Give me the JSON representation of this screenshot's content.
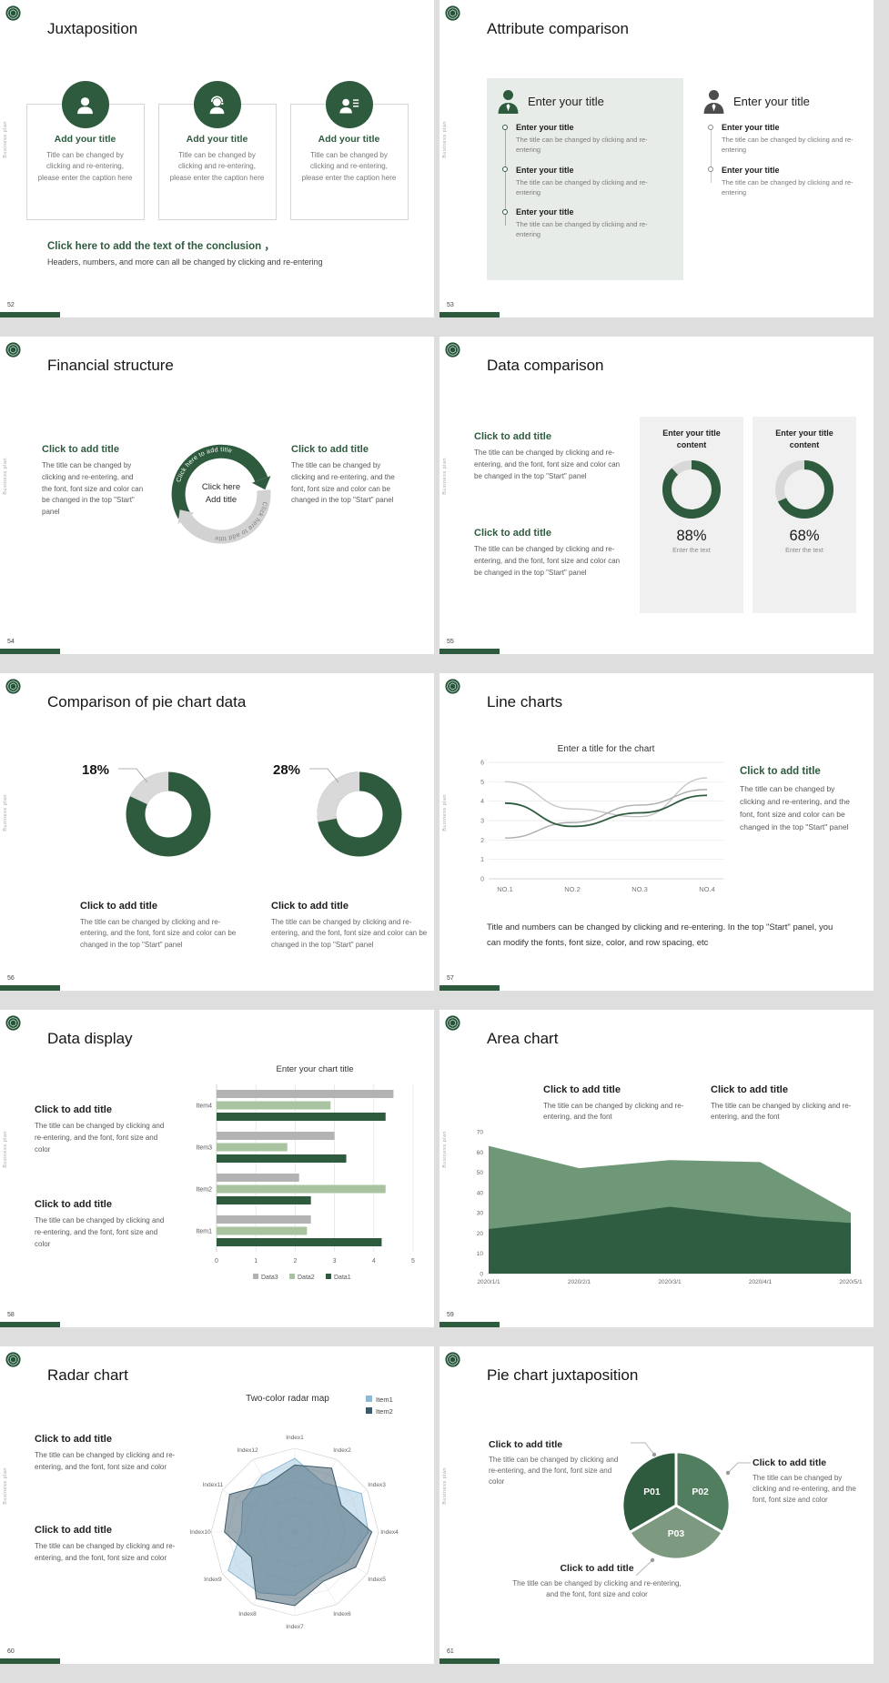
{
  "common": {
    "side_label": "Business plan"
  },
  "colors": {
    "accent_green": "#2e5b3e",
    "light_green": "#a9c3a0",
    "mid_green": "#6f9878",
    "gray": "#b3b3b3"
  },
  "slides": {
    "s52": {
      "page": "52",
      "title": "Juxtaposition",
      "cards": [
        {
          "heading": "Add your title",
          "caption": "Title can be changed by clicking and re-entering, please enter the caption here"
        },
        {
          "heading": "Add your title",
          "caption": "Title can be changed by clicking and re-entering, please enter the caption here"
        },
        {
          "heading": "Add your title",
          "caption": "Title can be changed by clicking and re-entering, please enter the caption here"
        }
      ],
      "conclusion_bold": "Click here to add the text of the conclusion ，",
      "conclusion_text": "Headers, numbers, and more can all be changed by clicking and re-entering"
    },
    "s53": {
      "page": "53",
      "title": "Attribute comparison",
      "left": {
        "title": "Enter your title",
        "items": [
          {
            "heading": "Enter your title",
            "text": "The title can be changed by clicking and re-entering"
          },
          {
            "heading": "Enter your title",
            "text": "The title can be changed by clicking and re-entering"
          },
          {
            "heading": "Enter your title",
            "text": "The title can be changed by clicking and re-entering"
          }
        ]
      },
      "right": {
        "title": "Enter your title",
        "items": [
          {
            "heading": "Enter your title",
            "text": "The title can be changed by clicking and re-entering"
          },
          {
            "heading": "Enter your title",
            "text": "The title can be changed by clicking and re-entering"
          }
        ]
      }
    },
    "s54": {
      "page": "54",
      "title": "Financial structure",
      "left": {
        "heading": "Click to add title",
        "text": "The title can be changed by clicking and re-entering, and the font, font size and color can be changed in the top \"Start\" panel"
      },
      "right": {
        "heading": "Click to add title",
        "text": "The title can be changed by clicking and re-entering, and the font, font size and color can be changed in the top \"Start\" panel"
      },
      "arc_label_top": "Click here to add title",
      "arc_label_bottom": "Click here to add title",
      "center_line1": "Click here",
      "center_line2": "Add title"
    },
    "s55": {
      "page": "55",
      "title": "Data comparison",
      "blocks": [
        {
          "heading": "Click to add title",
          "text": "The title can be changed by clicking and re-entering, and the font, font size and color can be changed in the top \"Start\" panel"
        },
        {
          "heading": "Click to add title",
          "text": "The title can be changed by clicking and re-entering, and the font, font size and color can be changed in the top \"Start\" panel"
        }
      ],
      "cards": [
        {
          "heading": "Enter your title content",
          "pct": "88%",
          "sub": "Enter the text"
        },
        {
          "heading": "Enter your title content",
          "pct": "68%",
          "sub": "Enter the text"
        }
      ]
    },
    "s56": {
      "page": "56",
      "title": "Comparison of pie chart data",
      "items": [
        {
          "pct": "18%",
          "heading": "Click to add title",
          "text": "The title can be changed by clicking and re-entering, and the font, font size and color can be changed in the top \"Start\" panel"
        },
        {
          "pct": "28%",
          "heading": "Click to add title",
          "text": "The title can be changed by clicking and re-entering, and the font, font size and color can be changed in the top \"Start\" panel"
        }
      ]
    },
    "s57": {
      "page": "57",
      "title": "Line charts",
      "block": {
        "heading": "Click to add title",
        "text": "The title can be changed by clicking and re-entering, and the font, font size and color can be changed in the top \"Start\" panel"
      },
      "note": "Title and numbers can be changed by clicking and re-entering. In the top \"Start\" panel, you can modify the fonts, font size, color, and row spacing, etc"
    },
    "s58": {
      "page": "58",
      "title": "Data display",
      "blocks": [
        {
          "heading": "Click to add title",
          "text": "The title can be changed by clicking and re-entering, and the font, font size and color"
        },
        {
          "heading": "Click to add title",
          "text": "The title can be changed by clicking and re-entering, and the font, font size and color"
        }
      ]
    },
    "s59": {
      "page": "59",
      "title": "Area chart",
      "blocks": [
        {
          "heading": "Click to add title",
          "text": "The title can be changed by clicking and re-entering, and the font"
        },
        {
          "heading": "Click to add title",
          "text": "The title can be changed by clicking and re-entering, and the font"
        }
      ]
    },
    "s60": {
      "page": "60",
      "title": "Radar chart",
      "blocks": [
        {
          "heading": "Click to add title",
          "text": "The title can be changed by clicking and re-entering, and the font, font size and color"
        },
        {
          "heading": "Click to add title",
          "text": "The title can be changed by clicking and re-entering, and the font, font size and color"
        }
      ]
    },
    "s61": {
      "page": "61",
      "title": "Pie chart juxtaposition",
      "blocks": [
        {
          "heading": "Click to add title",
          "text": "The title can be changed by clicking and re-entering, and the font, font size and color"
        },
        {
          "heading": "Click to add title",
          "text": "The title can be changed by clicking and re-entering, and the font, font size and color"
        },
        {
          "heading": "Click to add title",
          "text": "The title can be changed by clicking and re-entering, and the font, font size and color"
        }
      ]
    }
  },
  "chart_data": [
    {
      "slide": 55,
      "type": "donut",
      "pct": 88
    },
    {
      "slide": 55,
      "type": "donut",
      "pct": 68
    },
    {
      "slide": 56,
      "type": "donut-slice",
      "pct": 18
    },
    {
      "slide": 56,
      "type": "donut-slice",
      "pct": 28
    },
    {
      "slide": 57,
      "type": "line",
      "title": "Enter a title for the chart",
      "x": [
        "NO.1",
        "NO.2",
        "NO.3",
        "NO.4"
      ],
      "ymax": 6,
      "yticks": [
        0,
        1,
        2,
        3,
        4,
        5,
        6
      ],
      "series": [
        {
          "color": "#c6c6c6",
          "values": [
            5.0,
            3.6,
            3.2,
            5.2
          ]
        },
        {
          "color": "#adadad",
          "values": [
            2.1,
            2.9,
            3.8,
            4.6
          ]
        },
        {
          "color": "#2e5b3e",
          "values": [
            3.9,
            2.7,
            3.4,
            4.3
          ]
        }
      ]
    },
    {
      "slide": 58,
      "type": "barh",
      "title": "Enter your chart title",
      "categories": [
        "Item1",
        "Item2",
        "Item3",
        "Item4"
      ],
      "xmax": 5,
      "xticks": [
        0,
        1,
        2,
        3,
        4,
        5
      ],
      "series": [
        {
          "name": "Data3",
          "color": "#b3b3b3",
          "values": [
            2.4,
            2.1,
            3.0,
            4.5
          ]
        },
        {
          "name": "Data2",
          "color": "#a9c3a0",
          "values": [
            2.3,
            4.3,
            1.8,
            2.9
          ]
        },
        {
          "name": "Data1",
          "color": "#2e5b3e",
          "values": [
            4.2,
            2.4,
            3.3,
            4.3
          ]
        }
      ]
    },
    {
      "slide": 59,
      "type": "area",
      "x": [
        "2020/1/1",
        "2020/2/1",
        "2020/3/1",
        "2020/4/1",
        "2020/5/1"
      ],
      "ymax": 70,
      "yticks": [
        0,
        10,
        20,
        30,
        40,
        50,
        60,
        70
      ],
      "series": [
        {
          "color": "#6f9878",
          "values": [
            63,
            52,
            56,
            55,
            30
          ]
        },
        {
          "color": "#2f5d41",
          "values": [
            22,
            27,
            33,
            28,
            25
          ]
        }
      ]
    },
    {
      "slide": 60,
      "type": "radar",
      "title": "Two-color radar map",
      "max": 5,
      "axes": [
        "Index1",
        "Index2",
        "Index3",
        "Index4",
        "Index5",
        "Index6",
        "Index7",
        "Index8",
        "Index9",
        "Index10",
        "Index11",
        "Index12"
      ],
      "series": [
        {
          "name": "Item1",
          "color": "#8fb8d4",
          "fill": "rgba(166,203,227,0.55)",
          "values": [
            4.4,
            3.4,
            4.6,
            4.4,
            3.6,
            3.1,
            3.8,
            4.2,
            4.6,
            3.2,
            3.6,
            3.9
          ]
        },
        {
          "name": "Item2",
          "color": "#3c5a69",
          "fill": "rgba(60,90,105,0.5)",
          "values": [
            4.0,
            4.4,
            3.2,
            4.6,
            4.2,
            3.4,
            4.4,
            4.6,
            3.0,
            4.2,
            4.5,
            3.3
          ]
        }
      ]
    },
    {
      "slide": 61,
      "type": "pie3",
      "segments": [
        {
          "label": "P01",
          "from": 150,
          "to": 270,
          "color": "#2e5b3e"
        },
        {
          "label": "P02",
          "from": 270,
          "to": 390,
          "color": "#527e60"
        },
        {
          "label": "P03",
          "from": 30,
          "to": 150,
          "color": "#7d997f"
        }
      ]
    }
  ]
}
